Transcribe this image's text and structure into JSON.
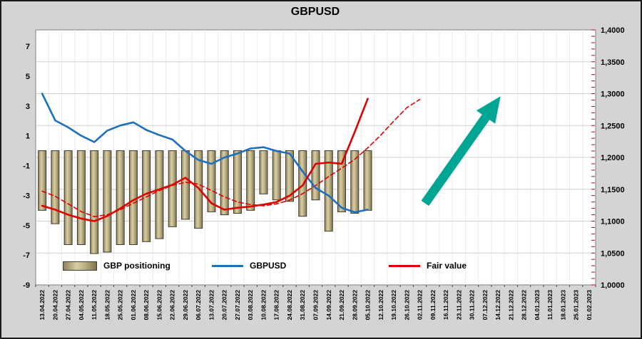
{
  "title": "GBPUSD",
  "legend": {
    "items": [
      {
        "label": "GBP positioning",
        "type": "bar"
      },
      {
        "label": "GBPUSD",
        "type": "line"
      },
      {
        "label": "Fair value",
        "type": "line"
      }
    ]
  },
  "colors": {
    "page_bg": "#d4d4d4",
    "plot_bg": "#ffffff",
    "plot_border": "#7f7f7f",
    "h_grid": "#d0d0d0",
    "v_grid": "#ececec",
    "bar_fill_dark": "#8f8257",
    "bar_fill_light": "#d8cda6",
    "bar_fill_mid": "#bdb184",
    "bar_edge": "#3f3d30",
    "gbpusd_line": "#1f6fbf",
    "fair_value_line": "#e00000",
    "forecast_line": "#e00000",
    "arrow": "#00a693",
    "axis_text": "#000000",
    "right_minor_tick": "#cc0000"
  },
  "chart_data": {
    "type": "combo",
    "title": "GBPUSD",
    "categories": [
      "13.04.2022",
      "20.04.2022",
      "27.04.2022",
      "04.05.2022",
      "11.05.2022",
      "18.05.2022",
      "25.05.2022",
      "01.06.2022",
      "08.06.2022",
      "15.06.2022",
      "22.06.2022",
      "29.06.2022",
      "06.07.2022",
      "13.07.2022",
      "20.07.2022",
      "27.07.2022",
      "03.08.2022",
      "10.08.2022",
      "17.08.2022",
      "24.08.2022",
      "31.08.2022",
      "07.09.2022",
      "14.09.2022",
      "21.09.2022",
      "28.09.2022",
      "05.10.2022",
      "12.10.2022",
      "19.10.2022",
      "26.10.2022",
      "02.11.2022",
      "09.11.2022",
      "16.11.2022",
      "23.11.2022",
      "30.11.2022",
      "07.12.2022",
      "14.12.2022",
      "21.12.2022",
      "28.12.2022",
      "04.01.2023",
      "11.01.2023",
      "18.01.2023",
      "25.01.2023",
      "01.02.2023"
    ],
    "left_axis": {
      "min": -9,
      "max": 8.1,
      "tick_values": [
        7,
        5,
        3,
        1,
        -1,
        -3,
        -5,
        -7,
        -9
      ],
      "tick_labels": [
        "7",
        "5",
        "3",
        "1",
        "-1",
        "-3",
        "-5",
        "-7",
        "-9"
      ]
    },
    "right_axis": {
      "min": 1.0,
      "max": 1.4,
      "tick_values": [
        1.4,
        1.35,
        1.3,
        1.25,
        1.2,
        1.15,
        1.1,
        1.05,
        1.0
      ],
      "tick_labels": [
        "1,4000",
        "1,3500",
        "1,3000",
        "1,2500",
        "1,2000",
        "1,1500",
        "1,1000",
        "1,0500",
        "1,0000"
      ],
      "minor_step": 0.01
    },
    "series": [
      {
        "name": "GBP positioning",
        "type": "bar",
        "axis": "left",
        "values": [
          -4.0,
          -4.9,
          -6.3,
          -6.3,
          -6.9,
          -6.8,
          -6.3,
          -6.3,
          -6.1,
          -5.9,
          -5.1,
          -4.6,
          -5.2,
          -4.1,
          -4.3,
          -4.2,
          -4.0,
          -2.9,
          -3.3,
          -3.4,
          -4.4,
          -3.3,
          -5.4,
          -4.1,
          -4.2,
          -4.0
        ]
      },
      {
        "name": "GBPUSD",
        "type": "line",
        "axis": "right",
        "dashed": false,
        "values": [
          1.3,
          1.258,
          1.247,
          1.234,
          1.224,
          1.242,
          1.25,
          1.255,
          1.243,
          1.235,
          1.228,
          1.21,
          1.196,
          1.19,
          1.2,
          1.206,
          1.214,
          1.216,
          1.21,
          1.206,
          1.178,
          1.152,
          1.14,
          1.121,
          1.114,
          1.118
        ]
      },
      {
        "name": "Fair value",
        "type": "line",
        "axis": "right",
        "dashed": false,
        "values": [
          1.124,
          1.118,
          1.11,
          1.104,
          1.1,
          1.108,
          1.12,
          1.133,
          1.143,
          1.15,
          1.157,
          1.168,
          1.152,
          1.128,
          1.118,
          1.121,
          1.123,
          1.126,
          1.13,
          1.14,
          1.156,
          1.19,
          1.192,
          1.19,
          1.24,
          1.292
        ]
      },
      {
        "name": "Fair value forecast",
        "type": "line",
        "axis": "right",
        "dashed": true,
        "values": [
          1.147,
          1.139,
          1.127,
          1.115,
          1.107,
          1.11,
          1.118,
          1.128,
          1.138,
          1.148,
          1.156,
          1.161,
          1.158,
          1.148,
          1.138,
          1.13,
          1.126,
          1.124,
          1.127,
          1.133,
          1.143,
          1.156,
          1.17,
          1.183,
          1.197,
          1.215,
          1.235,
          1.257,
          1.278,
          1.291
        ]
      }
    ],
    "annotations": [
      {
        "type": "arrow",
        "from_index": 29.4,
        "from_value": 1.128,
        "to_index": 35.2,
        "to_value": 1.296
      }
    ],
    "grid": {
      "horizontal": true,
      "vertical": true
    },
    "legend_position": "bottom-inside"
  }
}
